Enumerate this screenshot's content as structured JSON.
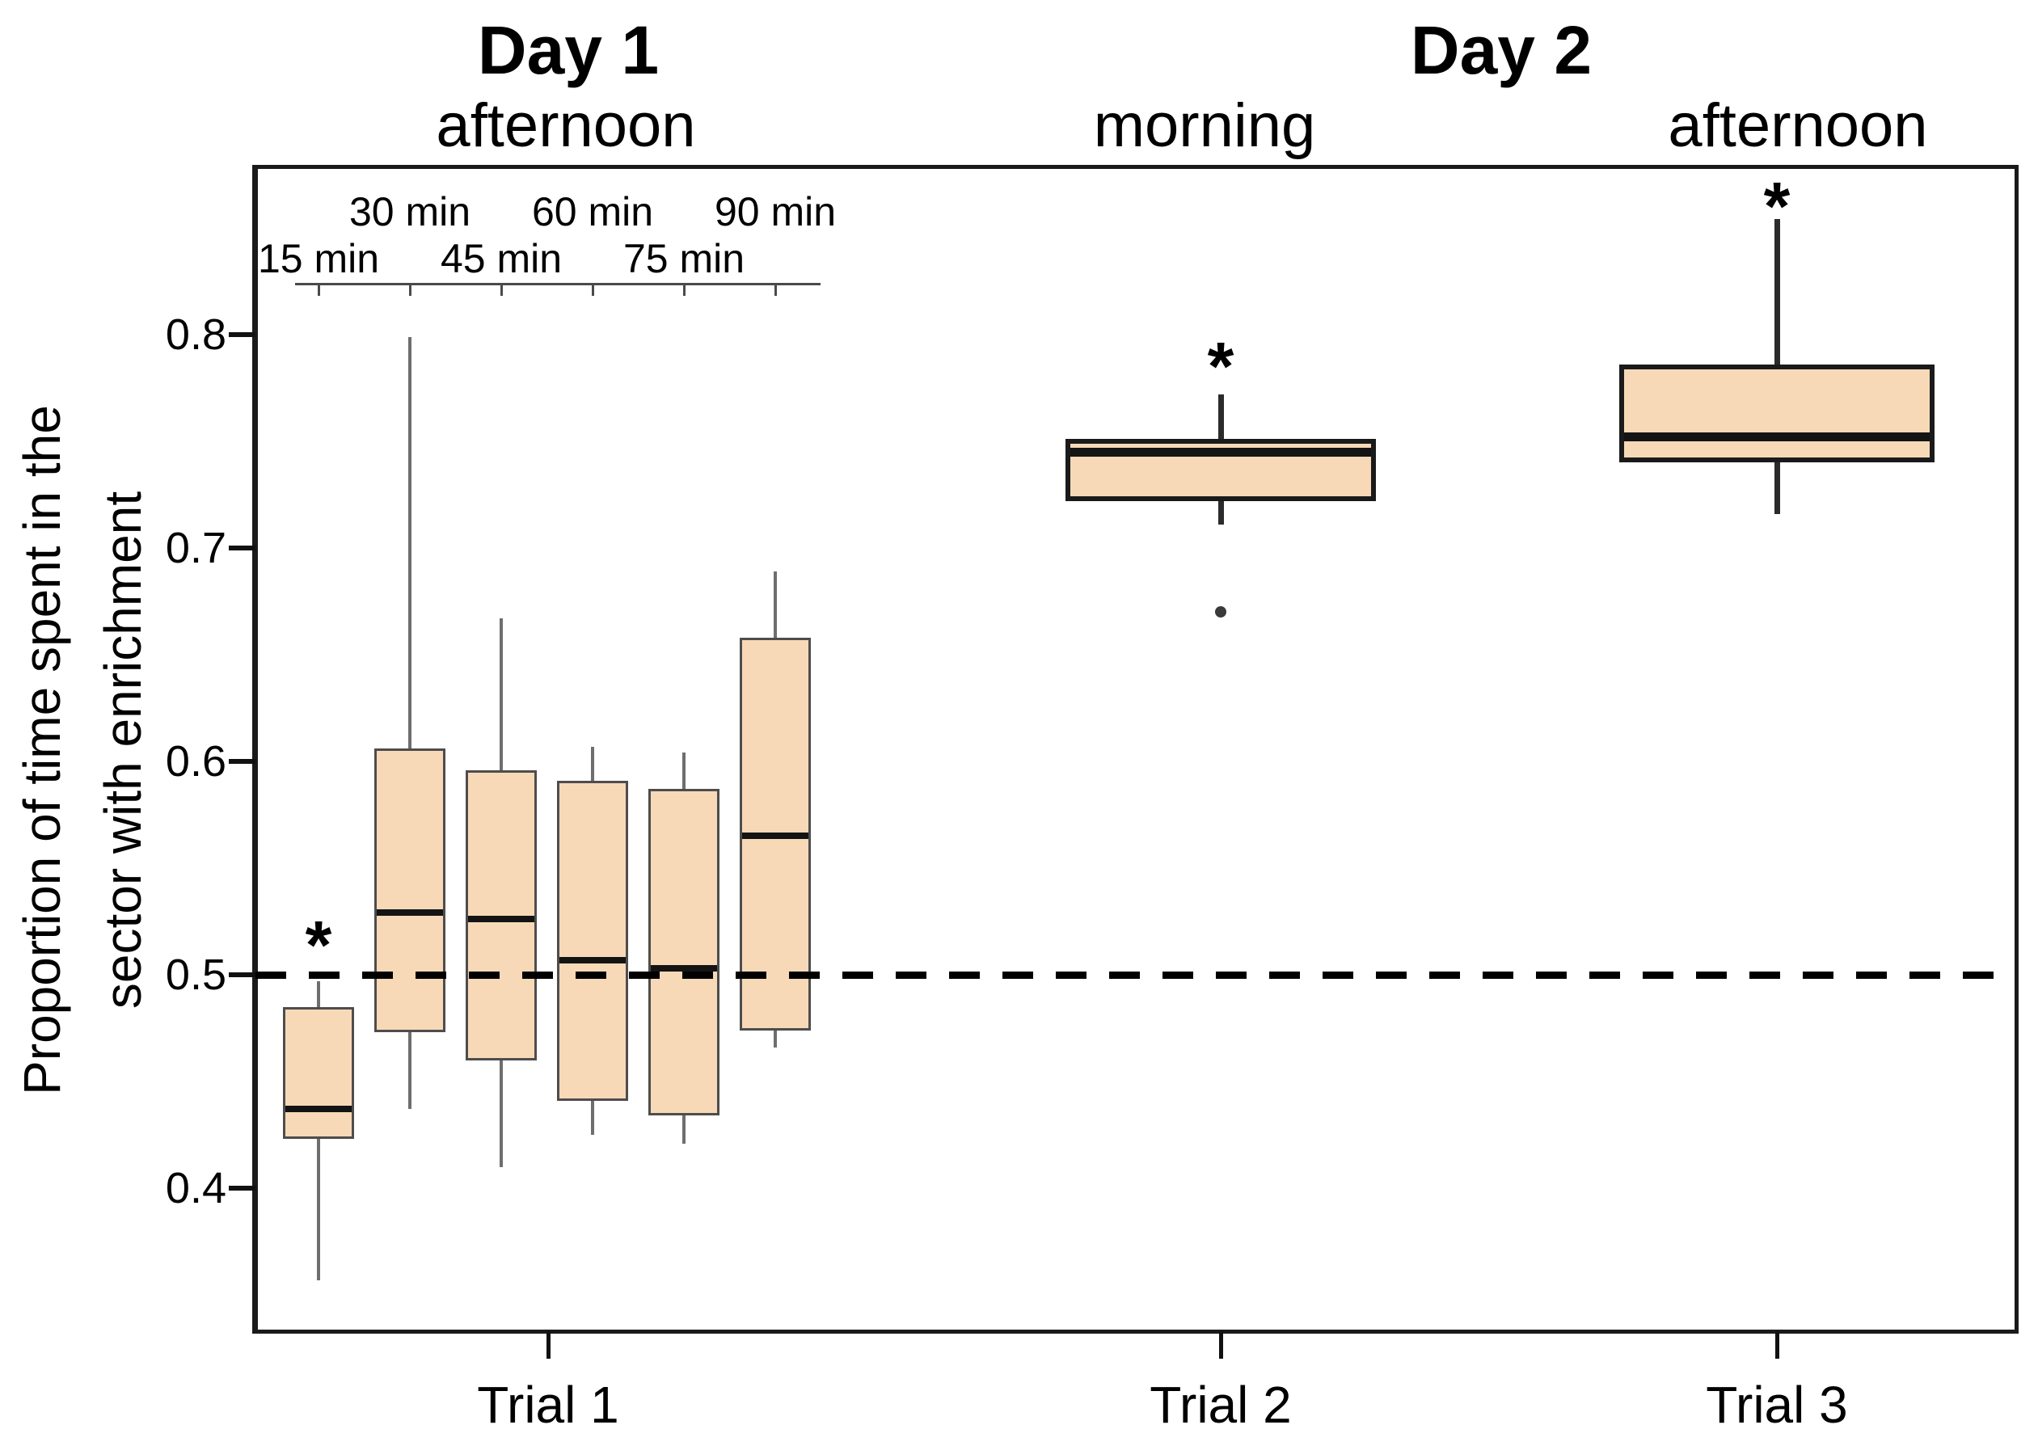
{
  "headers": {
    "day1_title": "Day 1",
    "day1_sub": "afternoon",
    "day2_title": "Day 2",
    "day2_sub_morning": "morning",
    "day2_sub_afternoon": "afternoon"
  },
  "y_axis": {
    "label_line1": "Proportion of time spent in the",
    "label_line2": "sector with enrichment"
  },
  "chart_data": {
    "type": "boxplot",
    "title": "",
    "xlabel": "",
    "ylabel": "Proportion of time spent in the sector with enrichment",
    "ylim": [
      0.333,
      0.878
    ],
    "yticks": [
      0.4,
      0.5,
      0.6,
      0.7,
      0.8
    ],
    "reference_line_y": 0.5,
    "reference_line_style": "dashed",
    "box_fill_color": "#F8D9B7",
    "significance_marker": "*",
    "groups": [
      {
        "trial": "Trial 1",
        "day": "Day 1",
        "session": "afternoon",
        "boxes": [
          {
            "label": "15 min",
            "whisker_low": 0.357,
            "q1": 0.423,
            "median": 0.437,
            "q3": 0.485,
            "whisker_high": 0.497,
            "significant": true,
            "star_y": 0.521
          },
          {
            "label": "30 min",
            "whisker_low": 0.437,
            "q1": 0.473,
            "median": 0.529,
            "q3": 0.606,
            "whisker_high": 0.799,
            "significant": false
          },
          {
            "label": "45 min",
            "whisker_low": 0.41,
            "q1": 0.46,
            "median": 0.526,
            "q3": 0.596,
            "whisker_high": 0.667,
            "significant": false
          },
          {
            "label": "60 min",
            "whisker_low": 0.425,
            "q1": 0.441,
            "median": 0.507,
            "q3": 0.591,
            "whisker_high": 0.607,
            "significant": false
          },
          {
            "label": "75 min",
            "whisker_low": 0.421,
            "q1": 0.434,
            "median": 0.503,
            "q3": 0.587,
            "whisker_high": 0.604,
            "significant": false
          },
          {
            "label": "90 min",
            "whisker_low": 0.466,
            "q1": 0.474,
            "median": 0.565,
            "q3": 0.658,
            "whisker_high": 0.689,
            "significant": false
          }
        ]
      },
      {
        "trial": "Trial 2",
        "day": "Day 2",
        "session": "morning",
        "boxes": [
          {
            "label": "Trial 2",
            "whisker_low": 0.711,
            "q1": 0.722,
            "median": 0.745,
            "q3": 0.751,
            "whisker_high": 0.772,
            "outliers": [
              0.67
            ],
            "significant": true,
            "star_y": 0.792
          }
        ]
      },
      {
        "trial": "Trial 3",
        "day": "Day 2",
        "session": "afternoon",
        "boxes": [
          {
            "label": "Trial 3",
            "whisker_low": 0.716,
            "q1": 0.74,
            "median": 0.752,
            "q3": 0.786,
            "whisker_high": 0.854,
            "significant": true,
            "star_y": 0.867
          }
        ]
      }
    ],
    "time_axis_labels_upper": [
      "30 min",
      "60 min",
      "90 min"
    ],
    "time_axis_labels_lower": [
      "15 min",
      "45 min",
      "75 min"
    ],
    "x_labels": [
      "Trial 1",
      "Trial 2",
      "Trial 3"
    ],
    "legend": "off",
    "grid": "off"
  }
}
